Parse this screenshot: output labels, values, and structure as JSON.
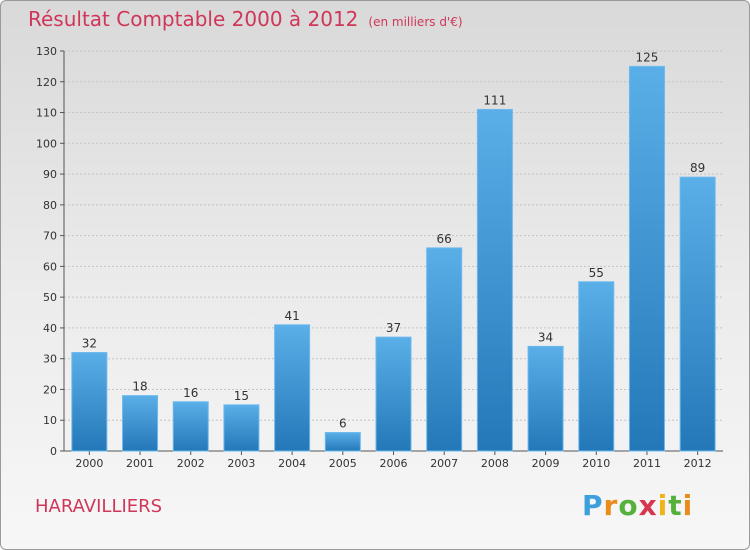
{
  "header": {
    "title": "Résultat Comptable 2000 à 2012",
    "unit": "(en milliers d'€)"
  },
  "footer": {
    "commune": "HARAVILLIERS",
    "logo_text": "Proxiti"
  },
  "colors": {
    "title": "#d03658",
    "bar_top": "#5aafe8",
    "bar_bottom": "#2478b8",
    "bar_border": "#6cb9ee"
  },
  "chart_data": {
    "type": "bar",
    "title": "Résultat Comptable 2000 à 2012",
    "subtitle": "(en milliers d'€)",
    "xlabel": "",
    "ylabel": "",
    "categories": [
      "2000",
      "2001",
      "2002",
      "2003",
      "2004",
      "2005",
      "2006",
      "2007",
      "2008",
      "2009",
      "2010",
      "2011",
      "2012"
    ],
    "values": [
      32,
      18,
      16,
      15,
      41,
      6,
      37,
      66,
      111,
      34,
      55,
      125,
      89
    ],
    "ylim": [
      0,
      130
    ],
    "yticks": [
      0,
      10,
      20,
      30,
      40,
      50,
      60,
      70,
      80,
      90,
      100,
      110,
      120,
      130
    ],
    "grid": true,
    "legend": "none"
  }
}
